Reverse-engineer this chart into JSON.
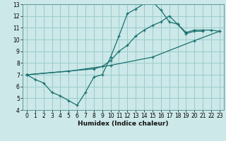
{
  "xlabel": "Humidex (Indice chaleur)",
  "bg_color": "#cce8e8",
  "grid_color": "#99cccc",
  "line_color": "#1a7070",
  "xlim": [
    -0.5,
    23.5
  ],
  "ylim": [
    4,
    13
  ],
  "xtick_labels": [
    "0",
    "1",
    "2",
    "3",
    "4",
    "5",
    "6",
    "7",
    "8",
    "9",
    "10",
    "11",
    "12",
    "13",
    "14",
    "15",
    "16",
    "17",
    "18",
    "19",
    "20",
    "21",
    "22",
    "23"
  ],
  "xtick_vals": [
    0,
    1,
    2,
    3,
    4,
    5,
    6,
    7,
    8,
    9,
    10,
    11,
    12,
    13,
    14,
    15,
    16,
    17,
    18,
    19,
    20,
    21,
    22,
    23
  ],
  "ytick_vals": [
    4,
    5,
    6,
    7,
    8,
    9,
    10,
    11,
    12,
    13
  ],
  "series": [
    {
      "x": [
        0,
        1,
        2,
        3,
        4,
        5,
        6,
        7,
        8,
        9,
        10,
        11,
        12,
        13,
        14,
        15,
        16,
        17,
        18,
        19,
        20,
        21
      ],
      "y": [
        7.0,
        6.6,
        6.3,
        5.5,
        5.2,
        4.8,
        4.4,
        5.5,
        6.8,
        7.0,
        8.5,
        10.3,
        12.2,
        12.6,
        13.05,
        13.2,
        12.5,
        11.5,
        11.3,
        10.5,
        10.7,
        10.7
      ]
    },
    {
      "x": [
        0,
        8,
        9,
        10,
        11,
        12,
        13,
        14,
        15,
        16,
        17,
        18,
        19,
        20,
        21,
        22,
        23
      ],
      "y": [
        7.0,
        7.5,
        7.7,
        8.2,
        9.0,
        9.5,
        10.3,
        10.8,
        11.2,
        11.5,
        12.0,
        11.3,
        10.6,
        10.8,
        10.8,
        10.8,
        10.7
      ]
    },
    {
      "x": [
        0,
        5,
        10,
        15,
        20,
        23
      ],
      "y": [
        7.0,
        7.3,
        7.8,
        8.5,
        9.9,
        10.7
      ]
    }
  ]
}
